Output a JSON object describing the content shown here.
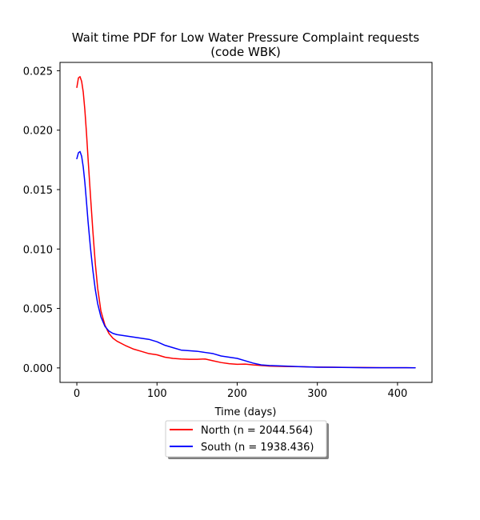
{
  "chart_data": {
    "type": "line",
    "title_line1": "Wait time PDF for Low Water Pressure Complaint  requests",
    "title_line2": "(code WBK)",
    "xlabel": "Time (days)",
    "ylabel": "",
    "xlim": [
      -21,
      443
    ],
    "ylim": [
      -0.00122,
      0.0257
    ],
    "x_ticks": [
      0,
      100,
      200,
      300,
      400
    ],
    "x_tick_labels": [
      "0",
      "100",
      "200",
      "300",
      "400"
    ],
    "y_ticks": [
      0.0,
      0.005,
      0.01,
      0.015,
      0.02,
      0.025
    ],
    "y_tick_labels": [
      "0.000",
      "0.005",
      "0.010",
      "0.015",
      "0.020",
      "0.025"
    ],
    "grid": false,
    "legend_position": "below-center",
    "series": [
      {
        "name": "North (n = 2044.564)",
        "color": "#ff0000",
        "x": [
          0,
          2,
          4,
          6,
          8,
          10,
          12,
          14,
          17,
          20,
          23,
          26,
          30,
          35,
          40,
          45,
          50,
          60,
          70,
          80,
          90,
          100,
          110,
          120,
          130,
          140,
          150,
          160,
          170,
          180,
          190,
          200,
          210,
          220,
          230,
          240,
          260,
          280,
          300,
          320,
          340,
          360,
          380,
          400,
          422
        ],
        "y": [
          0.0236,
          0.0244,
          0.0245,
          0.0241,
          0.0232,
          0.0217,
          0.0198,
          0.0176,
          0.0145,
          0.0115,
          0.0088,
          0.0067,
          0.0048,
          0.0036,
          0.0029,
          0.0025,
          0.00225,
          0.0019,
          0.0016,
          0.0014,
          0.0012,
          0.0011,
          0.0009,
          0.0008,
          0.00075,
          0.00072,
          0.00072,
          0.00075,
          0.0006,
          0.00045,
          0.00035,
          0.0003,
          0.00032,
          0.00025,
          0.0002,
          0.00015,
          0.00012,
          0.0001,
          7e-05,
          6e-05,
          4e-05,
          3e-05,
          2e-05,
          2e-05,
          1e-05
        ]
      },
      {
        "name": "South (n = 1938.436)",
        "color": "#0000ff",
        "x": [
          0,
          2,
          4,
          6,
          8,
          10,
          12,
          14,
          17,
          20,
          23,
          26,
          30,
          35,
          40,
          45,
          50,
          60,
          70,
          80,
          90,
          100,
          110,
          120,
          130,
          140,
          150,
          160,
          170,
          180,
          190,
          200,
          210,
          220,
          230,
          240,
          260,
          280,
          300,
          320,
          340,
          360,
          380,
          400,
          422
        ],
        "y": [
          0.0176,
          0.0181,
          0.0182,
          0.0178,
          0.0169,
          0.0156,
          0.014,
          0.0123,
          0.0101,
          0.0082,
          0.0066,
          0.0054,
          0.0043,
          0.0035,
          0.0031,
          0.0029,
          0.0028,
          0.0027,
          0.0026,
          0.0025,
          0.0024,
          0.0022,
          0.0019,
          0.0017,
          0.0015,
          0.00145,
          0.0014,
          0.0013,
          0.0012,
          0.001,
          0.0009,
          0.0008,
          0.0006,
          0.0004,
          0.00025,
          0.0002,
          0.00015,
          0.0001,
          6e-05,
          5e-05,
          3e-05,
          2e-05,
          2e-05,
          2e-05,
          1e-05
        ]
      }
    ]
  }
}
